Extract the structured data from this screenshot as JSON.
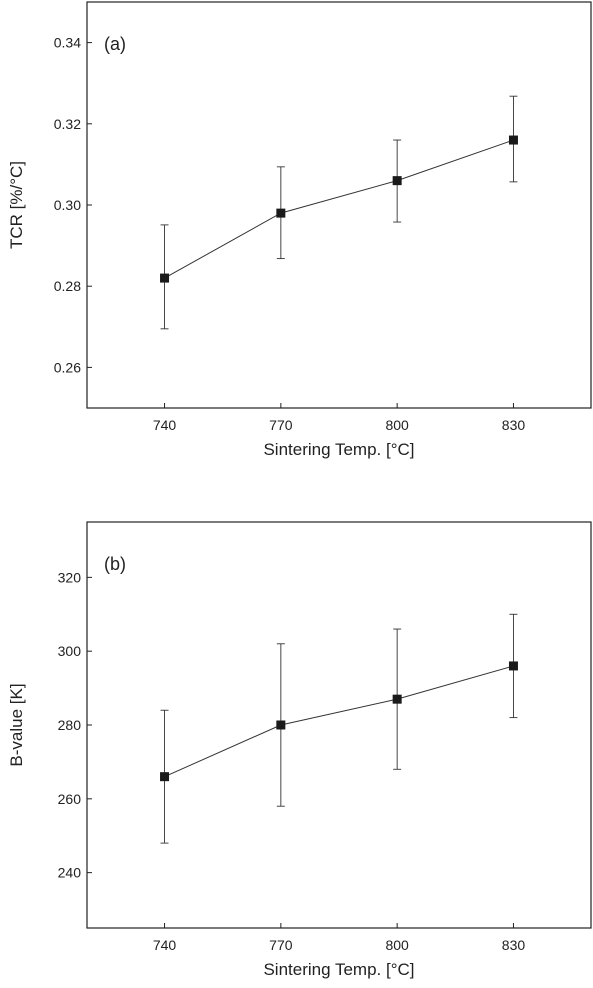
{
  "chart_data": [
    {
      "type": "line",
      "panel_label": "(a)",
      "xlabel": "Sintering Temp. [°C]",
      "ylabel": "TCR [%/°C]",
      "x": [
        740,
        770,
        800,
        830
      ],
      "x_tick_labels": [
        "740",
        "770",
        "800",
        "830"
      ],
      "xlim": [
        720,
        850
      ],
      "ylim": [
        0.25,
        0.35
      ],
      "y_ticks": [
        0.26,
        0.28,
        0.3,
        0.32,
        0.34
      ],
      "y_tick_labels": [
        "0.26",
        "0.28",
        "0.30",
        "0.32",
        "0.34"
      ],
      "series": [
        {
          "values": [
            0.282,
            0.298,
            0.306,
            0.316
          ],
          "error_low": [
            0.2695,
            0.2868,
            0.2958,
            0.3057
          ],
          "error_high": [
            0.2951,
            0.3094,
            0.316,
            0.3268
          ],
          "marker": "square",
          "color": "#1a1a1a"
        }
      ],
      "grid": false,
      "legend": "none"
    },
    {
      "type": "line",
      "panel_label": "(b)",
      "xlabel": "Sintering Temp. [°C]",
      "ylabel": "B-value [K]",
      "x": [
        740,
        770,
        800,
        830
      ],
      "x_tick_labels": [
        "740",
        "770",
        "800",
        "830"
      ],
      "xlim": [
        720,
        850
      ],
      "ylim": [
        225,
        335
      ],
      "y_ticks": [
        240,
        260,
        280,
        300,
        320
      ],
      "y_tick_labels": [
        "240",
        "260",
        "280",
        "300",
        "320"
      ],
      "series": [
        {
          "values": [
            266,
            280,
            287,
            296
          ],
          "error_low": [
            248,
            258,
            268,
            282
          ],
          "error_high": [
            284,
            302,
            306,
            310
          ],
          "marker": "square",
          "color": "#1a1a1a"
        }
      ],
      "grid": false,
      "legend": "none"
    }
  ]
}
